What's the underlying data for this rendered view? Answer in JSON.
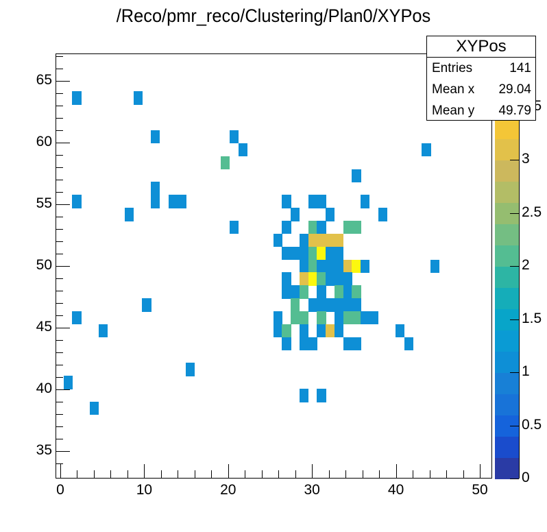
{
  "chart_data": {
    "type": "heatmap",
    "title": "/Reco/pmr_reco/Clustering/Plan0/XYPos",
    "xlabel": "",
    "ylabel": "",
    "xlim": [
      -0.5,
      51.5
    ],
    "ylim": [
      32.9,
      67.2
    ],
    "zlim": [
      0,
      4
    ],
    "x_ticks": [
      "0",
      "10",
      "20",
      "30",
      "40",
      "50"
    ],
    "y_ticks": [
      "35",
      "40",
      "45",
      "50",
      "55",
      "60",
      "65"
    ],
    "z_ticks": [
      "0",
      "0.5",
      "1",
      "1.5",
      "2",
      "2.5",
      "3",
      "3.5"
    ],
    "stats": {
      "name": "XYPos",
      "entries": "141",
      "mean_x": "29.04",
      "mean_y": "49.79"
    },
    "bin_note": "cells given as [x_bin_index, y_bin_index_from_top_grid, content]; x bin ~1.05 units wide starting near x=0.4, y bin 1 unit",
    "cells": [
      [
        1,
        -3,
        1
      ],
      [
        8,
        -3,
        1
      ],
      [
        10,
        0,
        1
      ],
      [
        19,
        0,
        1
      ],
      [
        20,
        1,
        1
      ],
      [
        41,
        1,
        1
      ],
      [
        18,
        2,
        2
      ],
      [
        33,
        3,
        1
      ],
      [
        10,
        4,
        1
      ],
      [
        1,
        5,
        1
      ],
      [
        10,
        5,
        1
      ],
      [
        12,
        5,
        1
      ],
      [
        13,
        5,
        1
      ],
      [
        25,
        5,
        1
      ],
      [
        28,
        5,
        1
      ],
      [
        29,
        5,
        1
      ],
      [
        34,
        5,
        1
      ],
      [
        7,
        6,
        1
      ],
      [
        26,
        6,
        1
      ],
      [
        30,
        6,
        1
      ],
      [
        36,
        6,
        1
      ],
      [
        19,
        7,
        1
      ],
      [
        25,
        7,
        1
      ],
      [
        28,
        7,
        2
      ],
      [
        29,
        7,
        1
      ],
      [
        32,
        7,
        2
      ],
      [
        33,
        7,
        2
      ],
      [
        24,
        8,
        1
      ],
      [
        27,
        8,
        1
      ],
      [
        28,
        8,
        3
      ],
      [
        29,
        8,
        3
      ],
      [
        30,
        8,
        3
      ],
      [
        31,
        8,
        3
      ],
      [
        25,
        9,
        1
      ],
      [
        26,
        9,
        1
      ],
      [
        27,
        9,
        1
      ],
      [
        28,
        9,
        2
      ],
      [
        29,
        9,
        4
      ],
      [
        30,
        9,
        1
      ],
      [
        31,
        9,
        1
      ],
      [
        27,
        10,
        1
      ],
      [
        28,
        10,
        2
      ],
      [
        29,
        10,
        1
      ],
      [
        30,
        10,
        1
      ],
      [
        31,
        10,
        1
      ],
      [
        32,
        10,
        3
      ],
      [
        33,
        10,
        4
      ],
      [
        34,
        10,
        1
      ],
      [
        42,
        10,
        1
      ],
      [
        25,
        11,
        1
      ],
      [
        27,
        11,
        3
      ],
      [
        28,
        11,
        4
      ],
      [
        29,
        11,
        2
      ],
      [
        30,
        11,
        1
      ],
      [
        31,
        11,
        1
      ],
      [
        32,
        11,
        1
      ],
      [
        25,
        12,
        1
      ],
      [
        26,
        12,
        1
      ],
      [
        27,
        12,
        2
      ],
      [
        29,
        12,
        1
      ],
      [
        31,
        12,
        2
      ],
      [
        32,
        12,
        1
      ],
      [
        33,
        12,
        2
      ],
      [
        9,
        13,
        1
      ],
      [
        26,
        13,
        2
      ],
      [
        28,
        13,
        1
      ],
      [
        29,
        13,
        1
      ],
      [
        30,
        13,
        1
      ],
      [
        31,
        13,
        1
      ],
      [
        32,
        13,
        1
      ],
      [
        33,
        13,
        1
      ],
      [
        1,
        14,
        1
      ],
      [
        24,
        14,
        1
      ],
      [
        26,
        14,
        2
      ],
      [
        27,
        14,
        2
      ],
      [
        29,
        14,
        2
      ],
      [
        31,
        14,
        1
      ],
      [
        32,
        14,
        2
      ],
      [
        33,
        14,
        2
      ],
      [
        34,
        14,
        1
      ],
      [
        35,
        14,
        1
      ],
      [
        4,
        15,
        1
      ],
      [
        24,
        15,
        1
      ],
      [
        25,
        15,
        2
      ],
      [
        27,
        15,
        1
      ],
      [
        29,
        15,
        1
      ],
      [
        30,
        15,
        3
      ],
      [
        31,
        15,
        1
      ],
      [
        38,
        15,
        1
      ],
      [
        25,
        16,
        1
      ],
      [
        27,
        16,
        1
      ],
      [
        28,
        16,
        1
      ],
      [
        32,
        16,
        1
      ],
      [
        33,
        16,
        1
      ],
      [
        39,
        16,
        1
      ],
      [
        14,
        18,
        1
      ],
      [
        0,
        19,
        1
      ],
      [
        27,
        20,
        1
      ],
      [
        29,
        20,
        1
      ],
      [
        3,
        21,
        1
      ]
    ],
    "colors": {
      "1": "#0e8fd6",
      "2": "#54bd92",
      "3": "#e2c14a",
      "4": "#fcf70f"
    },
    "palette": [
      "#2a3ba5",
      "#1a4ccc",
      "#1563db",
      "#1873d8",
      "#1880d6",
      "#0e8fd6",
      "#0a9bd4",
      "#08a5c9",
      "#15adb9",
      "#2db5a4",
      "#54bd92",
      "#74be83",
      "#95bd70",
      "#b3bd66",
      "#ccb85d",
      "#e2c14a",
      "#f4c637",
      "#f8d32a",
      "#f9e51e",
      "#f9f90e"
    ]
  }
}
